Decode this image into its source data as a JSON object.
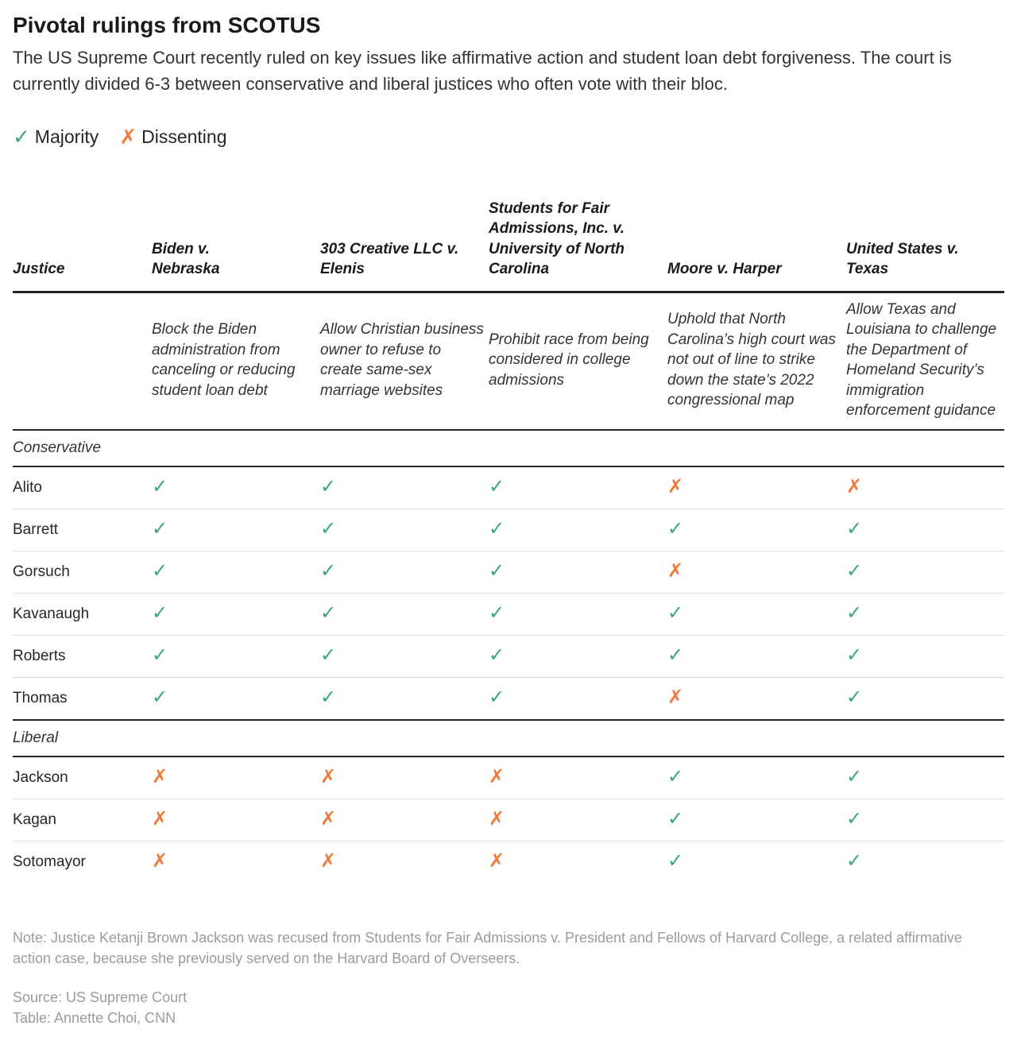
{
  "title": "Pivotal rulings from SCOTUS",
  "subtitle": "The US Supreme Court recently ruled on key issues like affirmative action and student loan debt forgiveness. The court is currently divided 6-3 between conservative and liberal justices who often vote with their bloc.",
  "legend": {
    "majority_symbol": "✓",
    "majority_label": "Majority",
    "dissent_symbol": "✗",
    "dissent_label": "Dissenting"
  },
  "colors": {
    "majority": "#3aa389",
    "dissent": "#f07a3c"
  },
  "header": {
    "justice": "Justice",
    "cases": [
      "Biden v. Nebraska",
      "303 Creative LLC v. Elenis",
      "Students for Fair Admissions, Inc. v. University of North Carolina",
      "Moore v. Harper",
      "United States v. Texas"
    ]
  },
  "descriptions": [
    "Block the Biden administration from canceling or reducing student loan debt",
    "Allow Christian business owner to refuse to create same-sex marriage websites",
    "Prohibit race from being considered in college admissions",
    "Uphold that North Carolina’s high court was not out of line to strike down the state’s 2022 congressional map",
    "Allow Texas and Louisiana to challenge the Department of Homeland Security’s immigration enforcement guidance"
  ],
  "groups": [
    {
      "name": "Conservative",
      "justices": [
        {
          "name": "Alito",
          "votes": [
            "majority",
            "majority",
            "majority",
            "dissent",
            "dissent"
          ]
        },
        {
          "name": "Barrett",
          "votes": [
            "majority",
            "majority",
            "majority",
            "majority",
            "majority"
          ]
        },
        {
          "name": "Gorsuch",
          "votes": [
            "majority",
            "majority",
            "majority",
            "dissent",
            "majority"
          ]
        },
        {
          "name": "Kavanaugh",
          "votes": [
            "majority",
            "majority",
            "majority",
            "majority",
            "majority"
          ]
        },
        {
          "name": "Roberts",
          "votes": [
            "majority",
            "majority",
            "majority",
            "majority",
            "majority"
          ]
        },
        {
          "name": "Thomas",
          "votes": [
            "majority",
            "majority",
            "majority",
            "dissent",
            "majority"
          ]
        }
      ]
    },
    {
      "name": "Liberal",
      "justices": [
        {
          "name": "Jackson",
          "votes": [
            "dissent",
            "dissent",
            "dissent",
            "majority",
            "majority"
          ]
        },
        {
          "name": "Kagan",
          "votes": [
            "dissent",
            "dissent",
            "dissent",
            "majority",
            "majority"
          ]
        },
        {
          "name": "Sotomayor",
          "votes": [
            "dissent",
            "dissent",
            "dissent",
            "majority",
            "majority"
          ]
        }
      ]
    }
  ],
  "note": "Note: Justice Ketanji Brown Jackson was recused from Students for Fair Admissions v. President and Fellows of Harvard College, a related affirmative action case, because she previously served on the Harvard Board of Overseers.",
  "source_line": "Source: US Supreme Court",
  "credit_line": "Table: Annette Choi, CNN"
}
